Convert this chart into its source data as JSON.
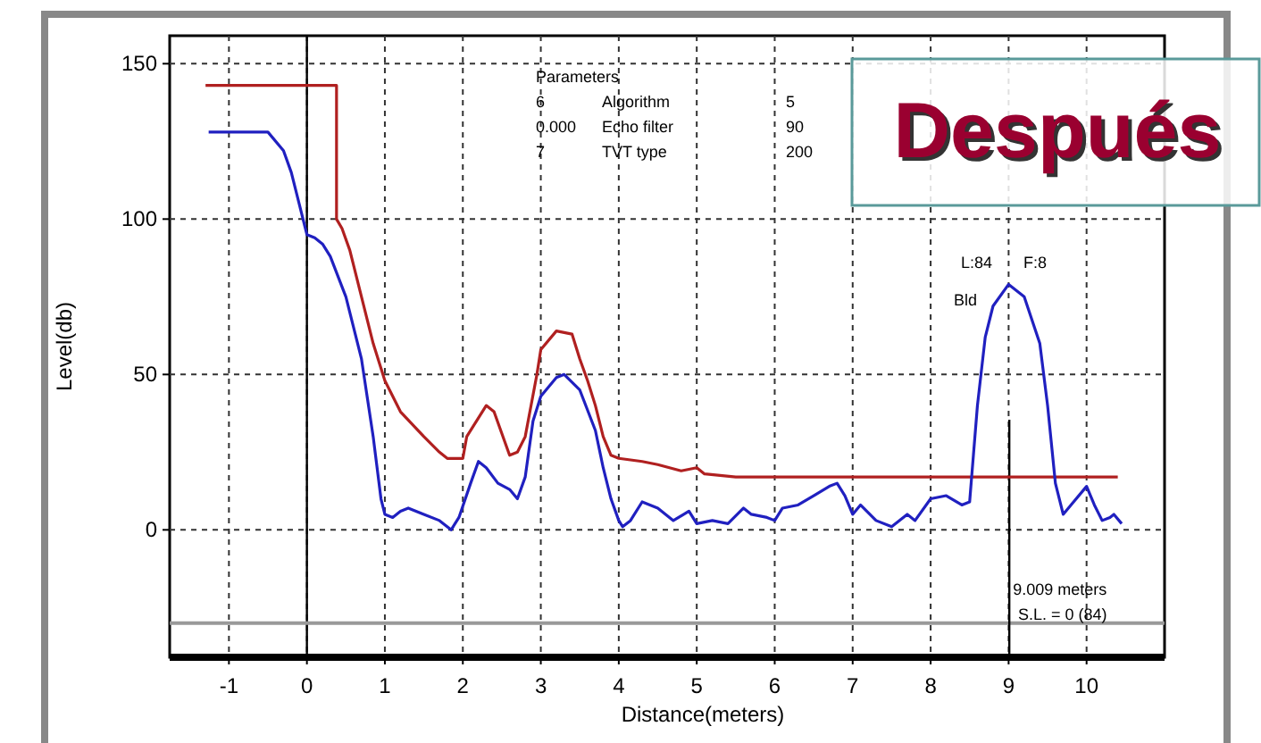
{
  "chart_data": {
    "type": "line",
    "xlabel": "Distance(meters)",
    "ylabel": "Level(db)",
    "xlim": [
      -1.76,
      11.0
    ],
    "ylim": [
      -41,
      159
    ],
    "xticks": [
      -1,
      0,
      1,
      2,
      3,
      4,
      5,
      6,
      7,
      8,
      9,
      10
    ],
    "yticks": [
      0,
      50,
      100,
      150
    ],
    "grid": true,
    "line_style": "solid",
    "marker": "none",
    "series": [
      {
        "color": "#b02020",
        "x": [
          -1.3,
          0.38,
          0.38,
          0.45,
          0.55,
          0.7,
          0.85,
          1.0,
          1.2,
          1.5,
          1.7,
          1.8,
          2.0,
          2.05,
          2.3,
          2.4,
          2.6,
          2.7,
          2.8,
          2.95,
          3.0,
          3.2,
          3.4,
          3.5,
          3.6,
          3.7,
          3.8,
          3.9,
          4.0,
          4.3,
          4.5,
          4.8,
          5.0,
          5.1,
          5.5,
          10.4
        ],
        "values": [
          143,
          143,
          100,
          97,
          90,
          75,
          60,
          48,
          38,
          30,
          25,
          23,
          23,
          30,
          40,
          38,
          24,
          25,
          30,
          50,
          58,
          64,
          63,
          55,
          48,
          40,
          30,
          24,
          23,
          22,
          21,
          19,
          20,
          18,
          17,
          17
        ]
      },
      {
        "color": "#2020c0",
        "x": [
          -1.26,
          -0.5,
          -0.3,
          -0.2,
          -0.1,
          0,
          0.1,
          0.2,
          0.3,
          0.5,
          0.7,
          0.85,
          0.95,
          1.0,
          1.1,
          1.2,
          1.3,
          1.5,
          1.7,
          1.85,
          1.95,
          2.1,
          2.2,
          2.3,
          2.45,
          2.6,
          2.7,
          2.8,
          2.9,
          3.0,
          3.2,
          3.3,
          3.5,
          3.7,
          3.8,
          3.9,
          4.0,
          4.05,
          4.15,
          4.3,
          4.5,
          4.7,
          4.9,
          5.0,
          5.2,
          5.4,
          5.6,
          5.7,
          5.9,
          6.0,
          6.1,
          6.3,
          6.5,
          6.7,
          6.8,
          6.9,
          7.0,
          7.1,
          7.3,
          7.5,
          7.7,
          7.8,
          8.0,
          8.2,
          8.4,
          8.5,
          8.6,
          8.7,
          8.8,
          9.0,
          9.2,
          9.4,
          9.5,
          9.6,
          9.7,
          9.8,
          10.0,
          10.1,
          10.2,
          10.3,
          10.35,
          10.45
        ],
        "values": [
          128,
          128,
          122,
          115,
          105,
          95,
          94,
          92,
          88,
          75,
          55,
          30,
          10,
          5,
          4,
          6,
          7,
          5,
          3,
          0,
          4,
          15,
          22,
          20,
          15,
          13,
          10,
          17,
          35,
          43,
          49,
          50,
          45,
          32,
          20,
          10,
          3,
          1,
          3,
          9,
          7,
          3,
          6,
          2,
          3,
          2,
          7,
          5,
          4,
          3,
          7,
          8,
          11,
          14,
          15,
          11,
          5,
          8,
          3,
          1,
          5,
          3,
          10,
          11,
          8,
          9,
          40,
          62,
          72,
          79,
          75,
          60,
          40,
          15,
          5,
          8,
          14,
          8,
          3,
          4,
          5,
          2
        ]
      }
    ],
    "ref_lines": [
      {
        "axis": "x",
        "value": 0,
        "color": "#000000"
      },
      {
        "axis": "y",
        "value": -30,
        "color": "#999999"
      },
      {
        "axis": "x",
        "value": 9.009,
        "label": "9.009 meters",
        "color": "#000000"
      }
    ],
    "annotations": [
      "Parameters",
      "6",
      "Algorithm",
      "5",
      "0.000",
      "Echo filter",
      "90",
      "7",
      "TVT type",
      "200",
      "Después",
      "L:84",
      "F:8",
      "Bld",
      "S.L. = 0 (84)"
    ]
  }
}
